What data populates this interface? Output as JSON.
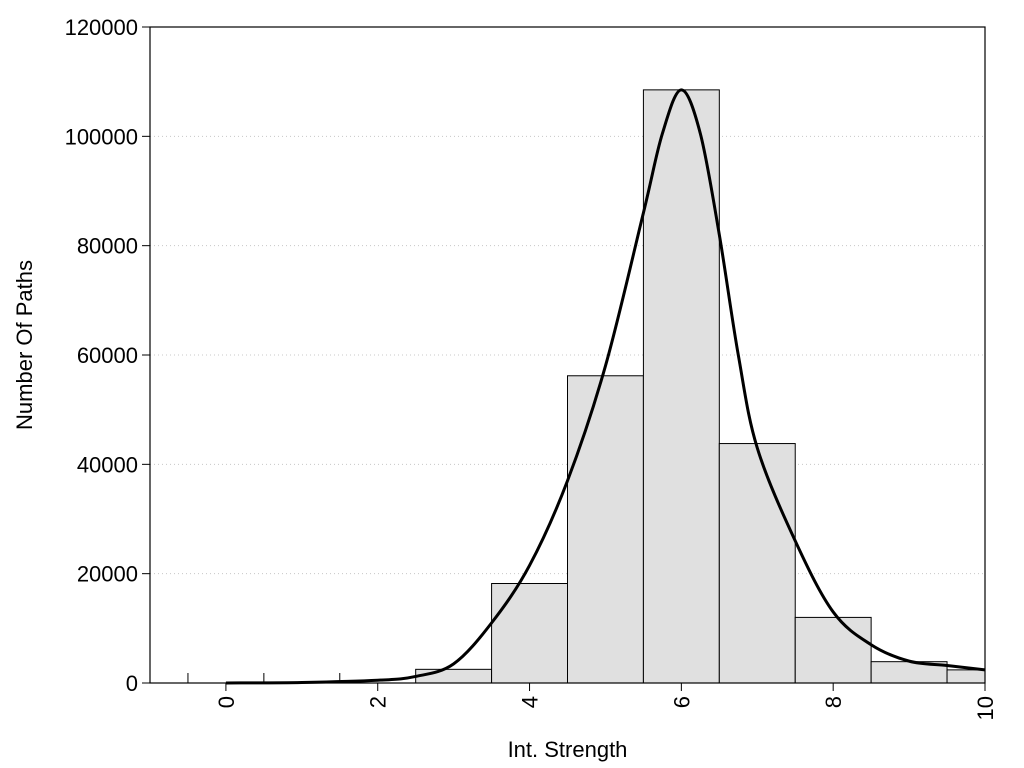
{
  "chart_data": {
    "type": "bar",
    "xlabel": "Int. Strength",
    "ylabel": "Number Of Paths",
    "xlim": [
      -1,
      10
    ],
    "ylim": [
      0,
      120000
    ],
    "x_ticks": [
      0,
      2,
      4,
      6,
      8,
      10
    ],
    "y_ticks": [
      0,
      20000,
      40000,
      60000,
      80000,
      100000,
      120000
    ],
    "grid": {
      "horizontal": true,
      "vertical": false,
      "style": "dotted"
    },
    "bin_width": 1,
    "bins": [
      {
        "center": 0,
        "value": 0
      },
      {
        "center": 1,
        "value": 0
      },
      {
        "center": 2,
        "value": 0
      },
      {
        "center": 3,
        "value": 2500
      },
      {
        "center": 4,
        "value": 18200
      },
      {
        "center": 5,
        "value": 56200
      },
      {
        "center": 6,
        "value": 108500
      },
      {
        "center": 7,
        "value": 43800
      },
      {
        "center": 8,
        "value": 12000
      },
      {
        "center": 9,
        "value": 3900
      },
      {
        "center": 10,
        "value": 2400
      }
    ],
    "curve": {
      "x": [
        0,
        1,
        2,
        2.5,
        3,
        3.5,
        4,
        4.5,
        5,
        5.5,
        5.75,
        6,
        6.25,
        6.5,
        6.75,
        7,
        7.5,
        8,
        8.5,
        9,
        9.5,
        10
      ],
      "y": [
        0,
        100,
        500,
        1200,
        3500,
        11000,
        21500,
        37000,
        58000,
        86000,
        100500,
        108500,
        100500,
        82000,
        60000,
        43000,
        26000,
        13000,
        7000,
        4000,
        3200,
        2400
      ]
    },
    "colors": {
      "bar_fill": "#e0e0e0",
      "bar_stroke": "#000000",
      "curve": "#000000",
      "grid": "#c8c8c8"
    }
  }
}
